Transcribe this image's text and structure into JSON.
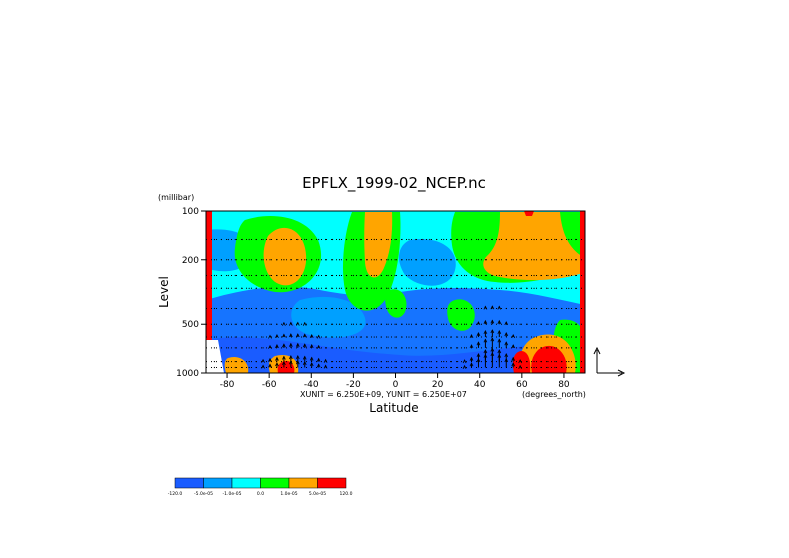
{
  "chart_data": {
    "type": "heatmap",
    "title": "EPFLX_1999-02_NCEP.nc",
    "xlabel": "Latitude",
    "ylabel": "Level",
    "y_units": "(millibar)",
    "x_units": "(degrees_north)",
    "unit_note": "XUNIT = 6.250E+09, YUNIT = 6.250E+07",
    "xlim": [
      -90,
      90
    ],
    "ylim": [
      1000,
      100
    ],
    "y_scale": "log",
    "x_ticks": [
      "-80",
      "-60",
      "-40",
      "-20",
      "0",
      "20",
      "40",
      "60",
      "80"
    ],
    "y_ticks": [
      "100",
      "200",
      "500",
      "1000"
    ],
    "colorbar": {
      "colors": [
        "#1a5cff",
        "#00a0ff",
        "#00ffff",
        "#00ff00",
        "#ffa500",
        "#ff0000"
      ],
      "tick_labels": [
        "-120.0",
        "-5.0e-05",
        "-1.0e-05",
        "0.0",
        "1.0e-05",
        "5.0e-05",
        "120.0"
      ]
    },
    "reference_vector": "arrows at right of plot (vertical and horizontal)"
  }
}
